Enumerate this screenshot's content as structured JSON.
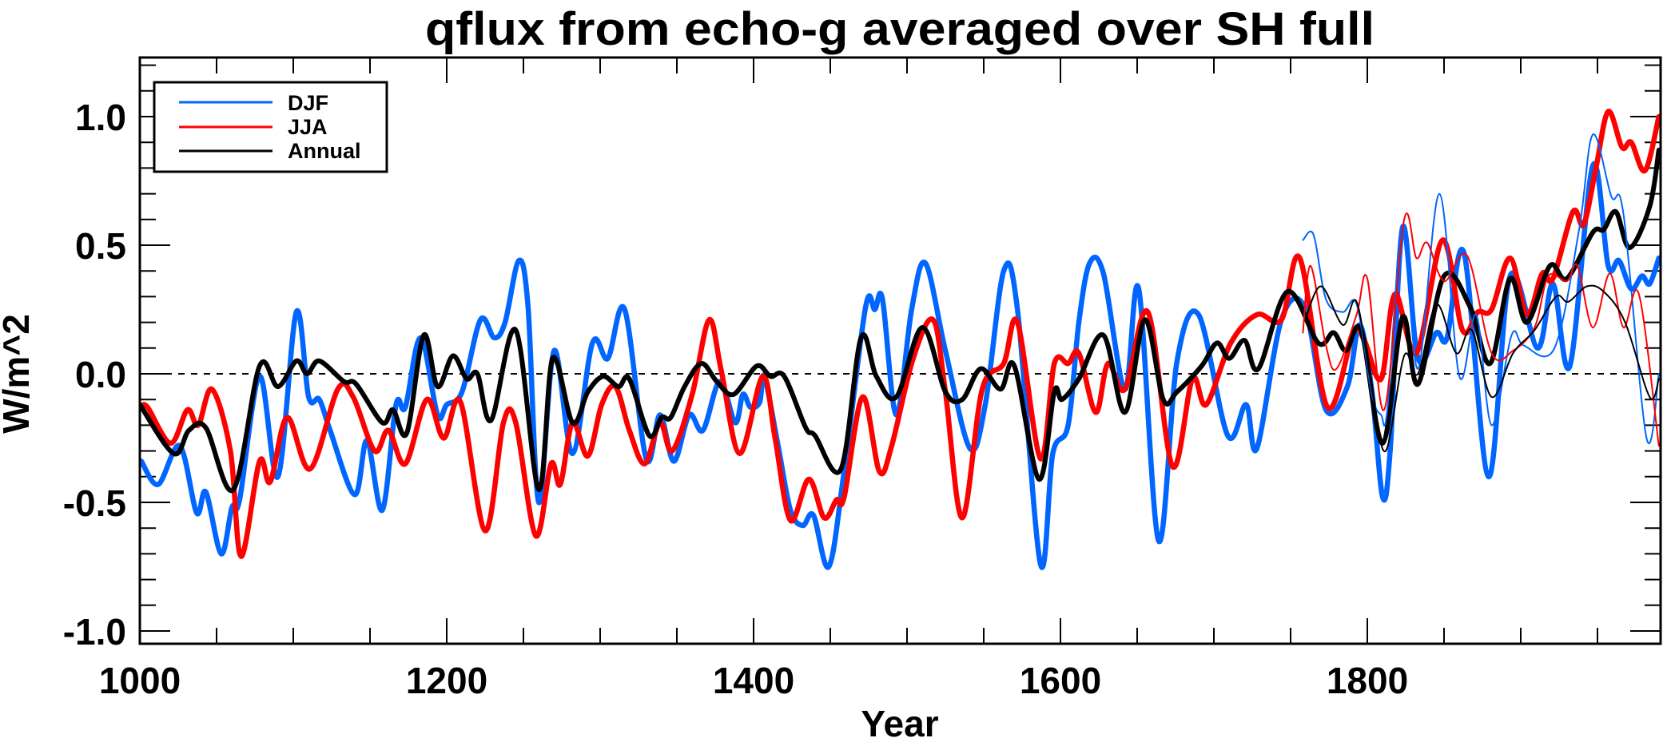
{
  "chart_data": {
    "type": "line",
    "title": "qflux from echo-g averaged over SH full",
    "xlabel": "Year",
    "ylabel": "W/m^2",
    "xlim": [
      1000,
      1990
    ],
    "ylim": [
      -1.05,
      1.23
    ],
    "x_ticks": [
      1000,
      1200,
      1400,
      1600,
      1800
    ],
    "x_tick_labels": [
      "1000",
      "1200",
      "1400",
      "1600",
      "1800"
    ],
    "x_minor_step": 50,
    "y_ticks": [
      -1.0,
      -0.5,
      0.0,
      0.5,
      1.0
    ],
    "y_tick_labels": [
      "-1.0",
      "-0.5",
      "0.0",
      "0.5",
      "1.0"
    ],
    "y_minor_step": 0.1,
    "zero_line": "dashed",
    "legend": {
      "placement": "top-left",
      "entries": [
        {
          "label": "DJF",
          "color": "#0066ff"
        },
        {
          "label": "JJA",
          "color": "#ff0000"
        },
        {
          "label": "Annual",
          "color": "#000000"
        }
      ]
    },
    "series": [
      {
        "name": "DJF",
        "style": "thick",
        "color": "#0066ff",
        "x": [
          1001,
          1012,
          1026,
          1037,
          1043,
          1053,
          1060,
          1065,
          1078,
          1090,
          1102,
          1110,
          1117,
          1124,
          1140,
          1148,
          1158,
          1167,
          1173,
          1183,
          1194,
          1200,
          1210,
          1222,
          1231,
          1238,
          1247,
          1253,
          1260,
          1270,
          1282,
          1295,
          1305,
          1316,
          1330,
          1339,
          1348,
          1358,
          1367,
          1378,
          1388,
          1393,
          1398,
          1404,
          1407,
          1416,
          1424,
          1432,
          1439,
          1449,
          1459,
          1473,
          1479,
          1484,
          1493,
          1503,
          1512,
          1525,
          1541,
          1551,
          1563,
          1572,
          1587,
          1595,
          1605,
          1612,
          1619,
          1628,
          1642,
          1651,
          1664,
          1676,
          1690,
          1709,
          1721,
          1728,
          1744,
          1759,
          1773,
          1787,
          1795,
          1803,
          1810,
          1815,
          1823,
          1833,
          1845,
          1852,
          1863,
          1879,
          1893,
          1911,
          1921,
          1932,
          1947,
          1957,
          1964,
          1972,
          1979,
          1984,
          1990
        ],
        "y": [
          -0.34,
          -0.43,
          -0.28,
          -0.54,
          -0.46,
          -0.7,
          -0.52,
          -0.49,
          -0.01,
          -0.4,
          0.24,
          -0.09,
          -0.1,
          -0.22,
          -0.47,
          -0.26,
          -0.53,
          -0.12,
          -0.13,
          0.14,
          -0.16,
          -0.12,
          -0.07,
          0.21,
          0.14,
          0.2,
          0.44,
          0.26,
          -0.5,
          0.09,
          -0.31,
          0.12,
          0.06,
          0.25,
          -0.33,
          -0.16,
          -0.34,
          -0.16,
          -0.22,
          -0.03,
          -0.19,
          -0.08,
          -0.13,
          -0.11,
          -0.01,
          -0.28,
          -0.53,
          -0.59,
          -0.55,
          -0.75,
          -0.38,
          0.26,
          0.25,
          0.29,
          -0.16,
          0.25,
          0.43,
          0.09,
          -0.29,
          -0.12,
          0.4,
          0.25,
          -0.74,
          -0.31,
          -0.2,
          0.2,
          0.43,
          0.39,
          -0.06,
          0.33,
          -0.65,
          0.05,
          0.23,
          -0.24,
          -0.12,
          -0.29,
          0.21,
          0.26,
          -0.14,
          -0.05,
          0.19,
          -0.07,
          -0.48,
          -0.29,
          0.57,
          0.06,
          0.16,
          0.14,
          0.47,
          -0.4,
          0.38,
          0.1,
          0.35,
          0.03,
          0.81,
          0.42,
          0.44,
          0.33,
          0.38,
          0.35,
          0.45
        ]
      },
      {
        "name": "JJA",
        "style": "thick",
        "color": "#ff0000",
        "x": [
          1001,
          1005,
          1020,
          1031,
          1038,
          1047,
          1059,
          1066,
          1078,
          1085,
          1096,
          1111,
          1129,
          1139,
          1153,
          1162,
          1173,
          1187,
          1198,
          1209,
          1225,
          1237,
          1245,
          1258,
          1268,
          1274,
          1282,
          1292,
          1301,
          1310,
          1319,
          1329,
          1339,
          1347,
          1360,
          1371,
          1379,
          1391,
          1406,
          1414,
          1424,
          1436,
          1446,
          1454,
          1459,
          1471,
          1482,
          1490,
          1504,
          1517,
          1525,
          1536,
          1549,
          1563,
          1572,
          1587,
          1596,
          1605,
          1612,
          1623,
          1631,
          1642,
          1657,
          1673,
          1686,
          1695,
          1711,
          1728,
          1744,
          1756,
          1774,
          1791,
          1798,
          1809,
          1818,
          1832,
          1849,
          1862,
          1872,
          1881,
          1893,
          1904,
          1914,
          1921,
          1934,
          1941,
          1949,
          1957,
          1966,
          1972,
          1981,
          1990
        ],
        "y": [
          -0.13,
          -0.13,
          -0.27,
          -0.14,
          -0.2,
          -0.06,
          -0.3,
          -0.71,
          -0.34,
          -0.42,
          -0.17,
          -0.37,
          -0.06,
          -0.09,
          -0.3,
          -0.22,
          -0.35,
          -0.1,
          -0.25,
          -0.11,
          -0.61,
          -0.19,
          -0.19,
          -0.63,
          -0.35,
          -0.43,
          -0.19,
          -0.32,
          -0.12,
          -0.05,
          -0.22,
          -0.35,
          -0.19,
          -0.3,
          -0.08,
          0.21,
          0.01,
          -0.31,
          -0.01,
          -0.25,
          -0.57,
          -0.41,
          -0.56,
          -0.49,
          -0.48,
          -0.09,
          -0.38,
          -0.28,
          0.06,
          0.21,
          -0.07,
          -0.56,
          -0.06,
          0.04,
          0.2,
          -0.33,
          0.04,
          0.04,
          0.08,
          -0.15,
          0.04,
          -0.06,
          0.24,
          -0.36,
          -0.02,
          -0.12,
          0.12,
          0.23,
          0.21,
          0.45,
          -0.13,
          0.16,
          0.13,
          -0.02,
          0.31,
          0.08,
          0.52,
          0.17,
          0.24,
          0.25,
          0.45,
          0.23,
          0.39,
          0.37,
          0.63,
          0.58,
          0.8,
          1.02,
          0.88,
          0.9,
          0.79,
          1.0
        ]
      },
      {
        "name": "Annual",
        "style": "thick",
        "color": "#000000",
        "x": [
          1000,
          1022,
          1032,
          1043,
          1061,
          1078,
          1090,
          1102,
          1109,
          1117,
          1133,
          1141,
          1158,
          1165,
          1174,
          1185,
          1194,
          1204,
          1213,
          1220,
          1229,
          1245,
          1260,
          1269,
          1282,
          1292,
          1302,
          1312,
          1319,
          1332,
          1340,
          1346,
          1355,
          1366,
          1376,
          1387,
          1402,
          1411,
          1420,
          1434,
          1440,
          1457,
          1470,
          1480,
          1493,
          1510,
          1525,
          1536,
          1548,
          1561,
          1570,
          1586,
          1596,
          1601,
          1612,
          1628,
          1642,
          1655,
          1667,
          1676,
          1692,
          1702,
          1710,
          1720,
          1729,
          1748,
          1768,
          1778,
          1786,
          1796,
          1810,
          1823,
          1833,
          1850,
          1867,
          1880,
          1893,
          1904,
          1919,
          1930,
          1947,
          1954,
          1962,
          1971,
          1984,
          1990
        ],
        "y": [
          -0.12,
          -0.31,
          -0.22,
          -0.21,
          -0.45,
          0.03,
          -0.05,
          0.05,
          0.0,
          0.05,
          -0.03,
          -0.04,
          -0.19,
          -0.14,
          -0.23,
          0.15,
          -0.05,
          0.07,
          -0.02,
          0.0,
          -0.18,
          0.17,
          -0.45,
          0.06,
          -0.19,
          -0.07,
          -0.01,
          -0.05,
          -0.02,
          -0.24,
          -0.17,
          -0.17,
          -0.05,
          0.04,
          -0.03,
          -0.08,
          0.03,
          -0.01,
          -0.01,
          -0.21,
          -0.24,
          -0.37,
          0.14,
          -0.01,
          -0.09,
          0.18,
          -0.07,
          -0.1,
          0.02,
          -0.06,
          0.03,
          -0.41,
          -0.07,
          -0.1,
          -0.02,
          0.15,
          -0.15,
          0.21,
          -0.1,
          -0.07,
          0.03,
          0.12,
          0.06,
          0.13,
          0.02,
          0.32,
          0.12,
          0.16,
          0.09,
          0.17,
          -0.27,
          0.22,
          -0.04,
          0.38,
          0.26,
          0.04,
          0.37,
          0.2,
          0.42,
          0.37,
          0.55,
          0.56,
          0.63,
          0.49,
          0.65,
          0.87
        ]
      },
      {
        "name": "DJF (thin)",
        "style": "thin",
        "color": "#0066ff",
        "x": [
          1758,
          1765,
          1773,
          1784,
          1793,
          1803,
          1809,
          1813,
          1823,
          1833,
          1847,
          1860,
          1871,
          1881,
          1894,
          1902,
          1922,
          1938,
          1947,
          1959,
          1967,
          1982,
          1990
        ],
        "y": [
          0.52,
          0.54,
          0.29,
          0.24,
          0.27,
          -0.08,
          -0.16,
          -0.14,
          0.57,
          0.02,
          0.7,
          -0.01,
          0.23,
          -0.2,
          0.15,
          0.11,
          0.1,
          0.56,
          0.93,
          0.69,
          0.62,
          -0.25,
          0.0
        ]
      },
      {
        "name": "JJA (thin)",
        "style": "thin",
        "color": "#ff0000",
        "x": [
          1758,
          1763,
          1773,
          1780,
          1793,
          1800,
          1811,
          1824,
          1832,
          1839,
          1850,
          1865,
          1881,
          1895,
          1909,
          1918,
          1930,
          1937,
          1947,
          1958,
          1967,
          1977,
          1990
        ],
        "y": [
          0.16,
          0.42,
          0.11,
          0.02,
          0.23,
          0.37,
          -0.14,
          0.6,
          0.45,
          0.51,
          0.36,
          0.46,
          0.08,
          0.09,
          0.18,
          0.38,
          0.36,
          0.42,
          0.18,
          0.39,
          0.18,
          0.31,
          -0.28
        ]
      },
      {
        "name": "Annual (thin)",
        "style": "thin",
        "color": "#000000",
        "x": [
          1760,
          1770,
          1784,
          1793,
          1803,
          1812,
          1824,
          1833,
          1845,
          1858,
          1868,
          1881,
          1895,
          1909,
          1923,
          1931,
          1943,
          1954,
          1968,
          1984,
          1990
        ],
        "y": [
          0.22,
          0.34,
          0.19,
          0.28,
          -0.06,
          -0.3,
          0.07,
          0.0,
          0.27,
          0.08,
          0.17,
          -0.09,
          0.08,
          0.17,
          0.3,
          0.28,
          0.34,
          0.32,
          0.2,
          -0.09,
          -0.02
        ]
      }
    ]
  }
}
